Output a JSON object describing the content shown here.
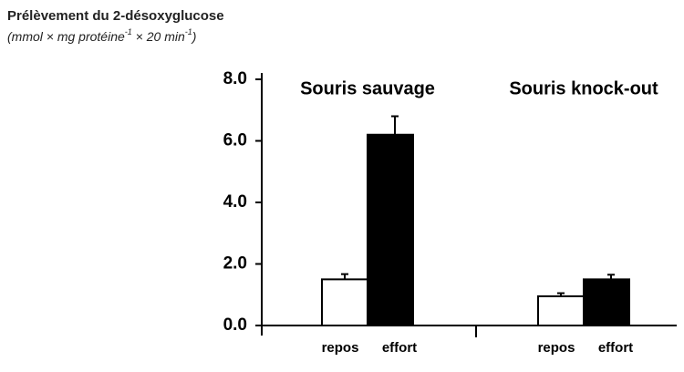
{
  "chart_data": {
    "type": "bar",
    "title": "Prélèvement du 2-désoxyglucose",
    "subtitle": [
      "(mmol × mg protéine",
      "-1",
      " × 20 min",
      "-1",
      ")"
    ],
    "ylim": [
      0,
      8
    ],
    "yticks": [
      {
        "value": 0,
        "label": "0.0"
      },
      {
        "value": 2,
        "label": "2.0"
      },
      {
        "value": 4,
        "label": "4.0"
      },
      {
        "value": 6,
        "label": "6.0"
      },
      {
        "value": 8,
        "label": "8.0"
      }
    ],
    "colors": [
      "#ffffff",
      "#000000"
    ],
    "groups": [
      {
        "name": "Souris sauvage",
        "categories": [
          "repos",
          "effort"
        ],
        "values": [
          1.5,
          6.2
        ],
        "errors": [
          0.17,
          0.6
        ]
      },
      {
        "name": "Souris knock-out",
        "categories": [
          "repos",
          "effort"
        ],
        "values": [
          0.95,
          1.5
        ],
        "errors": [
          0.1,
          0.15
        ]
      }
    ]
  }
}
